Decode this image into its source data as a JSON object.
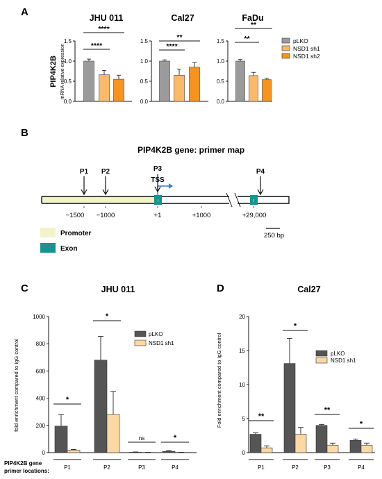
{
  "colors": {
    "grey": "#9b9b9b",
    "orange_light": "#fbb96a",
    "orange": "#f7931e",
    "dark_grey": "#555555",
    "peach": "#fdd8a3",
    "promoter": "#f2f3c9",
    "exon": "#15958f",
    "tss_arrow": "#2f7fd6"
  },
  "panel_a": {
    "letter": "A",
    "ylabel_main": "PIP4K2B",
    "ylabel_sub": "mRNA relative expression",
    "legend": [
      "pLKO",
      "NSD1 sh1",
      "NSD1 sh2"
    ]
  },
  "panel_b": {
    "letter": "B",
    "title": "PIP4K2B gene: primer map",
    "primers": [
      "P1",
      "P2",
      "P3",
      "P4"
    ],
    "tss": "TSS",
    "exon_mark": "I",
    "positions": [
      "−1500",
      "−1000",
      "+1",
      "+1000",
      "+29,000"
    ],
    "scale": "250 bp",
    "key_promoter": "Promoter",
    "key_exon": "Exon"
  },
  "panel_c": {
    "letter": "C",
    "ylabel": "fold enrichment compared to IgG control",
    "row_label": [
      "PIP4K2B gene",
      "primer locations:"
    ]
  },
  "panel_d": {
    "letter": "D",
    "ylabel": "Fold enrichment compared to IgG control"
  },
  "chart_data": [
    {
      "type": "bar",
      "title": "JHU 011",
      "categories": [
        "pLKO",
        "NSD1 sh1",
        "NSD1 sh2"
      ],
      "series": [
        {
          "name": "mRNA relative expression",
          "values": [
            1.0,
            0.66,
            0.55
          ],
          "errors": [
            0.05,
            0.11,
            0.1
          ]
        }
      ],
      "ylim": [
        0,
        1.5
      ],
      "yticks": [
        "0.0",
        "0.5",
        "1.0",
        "1.5"
      ],
      "significance": [
        "****",
        "****"
      ]
    },
    {
      "type": "bar",
      "title": "Cal27",
      "categories": [
        "pLKO",
        "NSD1 sh1",
        "NSD1 sh2"
      ],
      "series": [
        {
          "name": "mRNA relative expression",
          "values": [
            1.0,
            0.65,
            0.85
          ],
          "errors": [
            0.03,
            0.15,
            0.11
          ]
        }
      ],
      "ylim": [
        0,
        1.5
      ],
      "yticks": [
        "0.0",
        "0.5",
        "1.0",
        "1.5"
      ],
      "significance": [
        "**",
        "****"
      ]
    },
    {
      "type": "bar",
      "title": "FaDu",
      "categories": [
        "pLKO",
        "NSD1 sh1",
        "NSD1 sh2"
      ],
      "series": [
        {
          "name": "mRNA relative expression",
          "values": [
            1.0,
            0.64,
            0.54
          ],
          "errors": [
            0.04,
            0.08,
            0.03
          ]
        }
      ],
      "ylim": [
        0,
        1.5
      ],
      "yticks": [
        "0.0",
        "0.5",
        "1.0",
        "1.5"
      ],
      "significance": [
        "**",
        "**"
      ]
    },
    {
      "type": "bar",
      "title": "JHU 011",
      "categories": [
        "P1",
        "P2",
        "P3",
        "P4"
      ],
      "series": [
        {
          "name": "pLKO",
          "values": [
            195,
            680,
            3,
            10
          ],
          "errors": [
            85,
            175,
            2,
            5
          ]
        },
        {
          "name": "NSD1 sh1",
          "values": [
            18,
            280,
            2,
            2
          ],
          "errors": [
            5,
            170,
            1,
            1
          ]
        }
      ],
      "ylim": [
        0,
        1000
      ],
      "yticks": [
        "0",
        "200",
        "400",
        "600",
        "800",
        "1000"
      ],
      "significance": [
        "*",
        "*",
        "ns",
        "*"
      ]
    },
    {
      "type": "bar",
      "title": "Cal27",
      "categories": [
        "P1",
        "P2",
        "P3",
        "P4"
      ],
      "series": [
        {
          "name": "pLKO",
          "values": [
            2.7,
            13.1,
            4.0,
            1.8
          ],
          "errors": [
            0.2,
            3.7,
            0.15,
            0.2
          ]
        },
        {
          "name": "NSD1 sh1",
          "values": [
            0.7,
            2.7,
            1.1,
            1.1
          ],
          "errors": [
            0.3,
            1.0,
            0.3,
            0.3
          ]
        }
      ],
      "ylim": [
        0,
        20
      ],
      "yticks": [
        "0",
        "5",
        "10",
        "15",
        "20"
      ],
      "significance": [
        "**",
        "*",
        "**",
        "*"
      ]
    }
  ]
}
